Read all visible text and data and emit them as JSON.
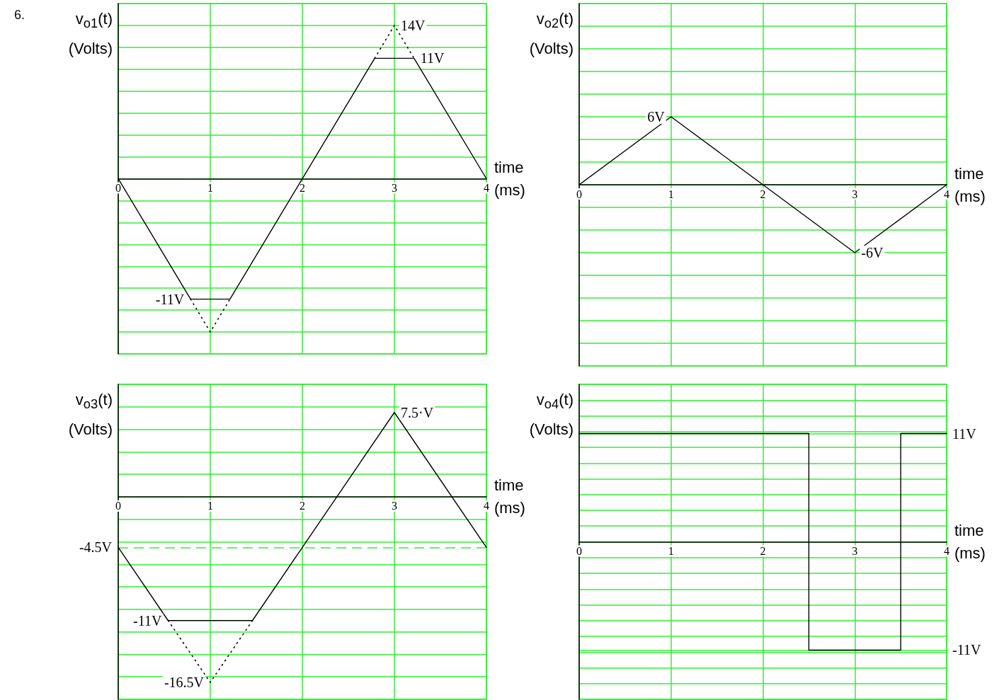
{
  "chart_data": [
    {
      "type": "line",
      "annotations": [
        "6."
      ],
      "ylabel": "v$_{o1}$(t)\n(Volts)",
      "xlabel": "time\n(ms)",
      "xlim": [
        0,
        4
      ],
      "xticks": [
        0,
        1,
        2,
        3,
        4
      ],
      "ylim": [
        -16,
        16
      ],
      "yticks": [
        -16,
        -14,
        -12,
        -10,
        -8,
        -6,
        -4,
        -2,
        0,
        2,
        4,
        6,
        8,
        10,
        12,
        14,
        16
      ],
      "tick_labels": "x",
      "grid": true,
      "marker": "none",
      "series": [
        {
          "color": "#000000",
          "line_style": "solid",
          "x": [
            0,
            0.786,
            1.214,
            2.786,
            3.214,
            4
          ],
          "values": [
            0,
            -11,
            -11,
            11,
            11,
            0
          ],
          "value_labels": [
            null,
            "-11V",
            null,
            null,
            "11V",
            null
          ]
        },
        {
          "color": "#000000",
          "line_style": "dotted",
          "x": [
            0.786,
            1,
            1.214
          ],
          "values": [
            -11,
            -14,
            -11
          ]
        },
        {
          "color": "#000000",
          "line_style": "dotted",
          "x": [
            2.786,
            3,
            3.214
          ],
          "values": [
            11,
            14,
            11
          ],
          "value_labels": [
            null,
            "14V",
            null
          ]
        }
      ]
    },
    {
      "type": "line",
      "ylabel": "v$_{o2}$(t)\n(Volts)",
      "xlabel": "time\n(ms)",
      "xlim": [
        0,
        4
      ],
      "xticks": [
        0,
        1,
        2,
        3,
        4
      ],
      "ylim": [
        -16,
        16
      ],
      "yticks": [
        -16,
        -14,
        -12,
        -10,
        -8,
        -6,
        -4,
        -2,
        0,
        2,
        4,
        6,
        8,
        10,
        12,
        14,
        16
      ],
      "tick_labels": "x",
      "grid": true,
      "marker": "none",
      "series": [
        {
          "color": "#000000",
          "line_style": "solid",
          "x": [
            0,
            1,
            2,
            3,
            4
          ],
          "values": [
            0,
            6,
            0,
            -6,
            0
          ],
          "value_labels": [
            null,
            "6V",
            null,
            "-6V",
            null
          ]
        }
      ]
    },
    {
      "type": "line",
      "ylabel": "v$_{o3}$(t)\n(Volts)",
      "xlabel": "time\n(ms)",
      "xlim": [
        0,
        4
      ],
      "xticks": [
        0,
        1,
        2,
        3,
        4
      ],
      "ylim": [
        -18,
        10
      ],
      "yticks": [
        -18,
        -16,
        -14,
        -12,
        -10,
        -8,
        -6,
        -4,
        -2,
        0,
        2,
        4,
        6,
        8,
        10
      ],
      "tick_labels": "x",
      "grid": true,
      "marker": "none",
      "series": [
        {
          "color": "#000000",
          "line_style": "solid",
          "x": [
            0,
            0.542,
            1.458,
            3,
            4
          ],
          "values": [
            -4.5,
            -11,
            -11,
            7.5,
            -4.5
          ],
          "value_labels": [
            "-4.5V",
            "-11V",
            null,
            "7.5·V",
            null
          ]
        },
        {
          "color": "#000000",
          "line_style": "dotted",
          "x": [
            0.542,
            1,
            1.458
          ],
          "values": [
            -11,
            -16.5,
            -11
          ],
          "value_labels": [
            null,
            "-16.5V",
            null
          ]
        }
      ],
      "ref_lines": [
        {
          "axis": "y",
          "value": -4.5,
          "color": "#33ee33",
          "line_style": "dashed"
        }
      ]
    },
    {
      "type": "line",
      "ylabel": "v$_{o4}$(t)\n(Volts)",
      "xlabel": "time\n(ms)",
      "xlim": [
        0,
        4
      ],
      "xticks": [
        0,
        1,
        2,
        3,
        4
      ],
      "y2lim": [
        -16,
        16
      ],
      "y2ticks": [
        {
          "value": -16,
          "label": null
        },
        {
          "value": -14.4,
          "label": null
        },
        {
          "value": -12.8,
          "label": null
        },
        {
          "value": -11.2,
          "label": null
        },
        {
          "value": -11,
          "label": "-11V"
        },
        {
          "value": -9.6,
          "label": null
        },
        {
          "value": -8,
          "label": null
        },
        {
          "value": -6.4,
          "label": null
        },
        {
          "value": -4.8,
          "label": null
        },
        {
          "value": -3.2,
          "label": null
        },
        {
          "value": -1.6,
          "label": null
        },
        {
          "value": 0,
          "label": null
        },
        {
          "value": 1.6,
          "label": null
        },
        {
          "value": 3.2,
          "label": null
        },
        {
          "value": 4.8,
          "label": null
        },
        {
          "value": 6.4,
          "label": null
        },
        {
          "value": 8,
          "label": null
        },
        {
          "value": 9.6,
          "label": null
        },
        {
          "value": 11,
          "label": "11V"
        },
        {
          "value": 11.2,
          "label": null
        },
        {
          "value": 12.8,
          "label": null
        },
        {
          "value": 14.4,
          "label": null
        },
        {
          "value": 16,
          "label": null
        }
      ],
      "grid": true,
      "marker": "none",
      "series": [
        {
          "color": "#000000",
          "line_style": "solid",
          "axis": "y2",
          "x": [
            0,
            2.5,
            2.5,
            3.5,
            3.5,
            4
          ],
          "values": [
            11,
            11,
            -11,
            -11,
            11,
            11
          ]
        }
      ]
    }
  ]
}
